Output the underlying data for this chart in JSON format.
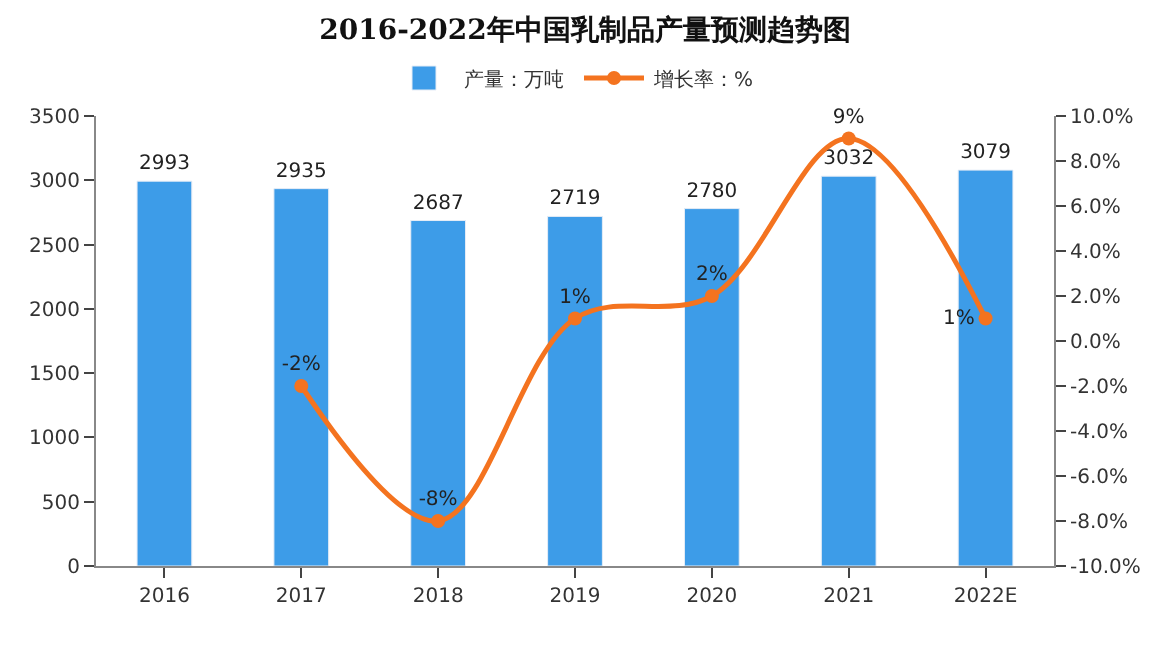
{
  "chart_data": {
    "type": "bar",
    "title": "2016-2022年中国乳制品产量预测趋势图",
    "categories": [
      "2016",
      "2017",
      "2018",
      "2019",
      "2020",
      "2021",
      "2022E"
    ],
    "series": [
      {
        "name": "产量：万吨",
        "color": "#3d9ce8",
        "values": [
          2993,
          2935,
          2687,
          2719,
          2780,
          3032,
          3079
        ],
        "value_labels": [
          "2993",
          "2935",
          "2687",
          "2719",
          "2780",
          "3032",
          "3079"
        ]
      },
      {
        "name": "增长率：%",
        "type": "line",
        "axis": "y2",
        "color": "#f4731f",
        "values": [
          null,
          -2,
          -8,
          1,
          2,
          9,
          1
        ],
        "value_labels": [
          null,
          "-2%",
          "-8%",
          "1%",
          "2%",
          "9%",
          "1%"
        ]
      }
    ],
    "ylim": [
      0,
      3500
    ],
    "yticks": [
      0,
      500,
      1000,
      1500,
      2000,
      2500,
      3000,
      3500
    ],
    "y2lim": [
      -10,
      10
    ],
    "y2ticks": [
      {
        "value": -10,
        "label": "-10.0%"
      },
      {
        "value": -8,
        "label": "-8.0%"
      },
      {
        "value": -6,
        "label": "-6.0%"
      },
      {
        "value": -4,
        "label": "-4.0%"
      },
      {
        "value": -2,
        "label": "-2.0%"
      },
      {
        "value": 0,
        "label": "0.0%"
      },
      {
        "value": 2,
        "label": "2.0%"
      },
      {
        "value": 4,
        "label": "4.0%"
      },
      {
        "value": 6,
        "label": "6.0%"
      },
      {
        "value": 8,
        "label": "8.0%"
      },
      {
        "value": 10,
        "label": "10.0%"
      }
    ],
    "legend": "top",
    "marker": "circle",
    "line_style": "solid"
  }
}
